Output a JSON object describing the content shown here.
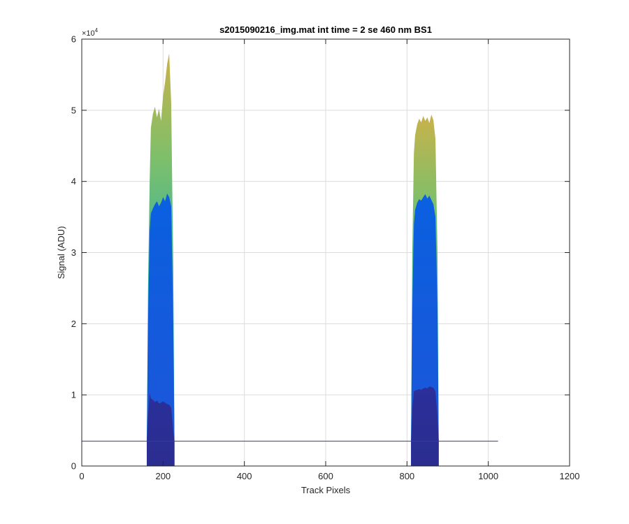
{
  "chart_data": {
    "type": "area",
    "title": "s2015090216_img.mat int time = 2 se  460 nm BS1",
    "xlabel": "Track Pixels",
    "ylabel": "Signal (ADU)",
    "xlim": [
      0,
      1200
    ],
    "ylim": [
      0,
      60000
    ],
    "y_exponent_label": "×10",
    "y_exponent_power": "4",
    "x_ticks": [
      "0",
      "200",
      "400",
      "600",
      "800",
      "1000",
      "1200"
    ],
    "y_ticks": [
      "0",
      "1",
      "2",
      "3",
      "4",
      "5",
      "6"
    ],
    "grid": true,
    "baseline": 3500,
    "colors": {
      "dark": "#2b2d8f",
      "mid": "#0a60e0",
      "teal": "#22b3b0",
      "green": "#7fbf6a",
      "yellow": "#c9b24a",
      "baseline": "#3b3b9a"
    },
    "series": [
      {
        "tier": "low",
        "x": [
          160,
          163,
          167,
          170,
          175,
          180,
          185,
          190,
          195,
          200,
          205,
          210,
          215,
          220,
          225,
          228
        ],
        "values": [
          3500,
          7000,
          10200,
          9500,
          9300,
          9000,
          9200,
          8800,
          8900,
          9100,
          8900,
          8700,
          8600,
          8200,
          5000,
          3500
        ]
      },
      {
        "tier": "mid",
        "x": [
          160,
          163,
          167,
          170,
          175,
          180,
          185,
          190,
          195,
          200,
          205,
          210,
          215,
          220,
          225,
          228
        ],
        "values": [
          3500,
          20000,
          33000,
          35500,
          36200,
          36800,
          37200,
          36500,
          37000,
          37800,
          37200,
          38300,
          37800,
          36500,
          20000,
          3500
        ]
      },
      {
        "tier": "high",
        "x": [
          160,
          163,
          167,
          170,
          175,
          180,
          185,
          190,
          195,
          200,
          205,
          210,
          215,
          220,
          225,
          228
        ],
        "values": [
          3500,
          25000,
          40000,
          47500,
          49500,
          50500,
          49000,
          50200,
          48500,
          52000,
          54000,
          56500,
          58000,
          51000,
          28000,
          3500
        ]
      },
      {
        "tier": "low",
        "x": [
          810,
          813,
          817,
          820,
          825,
          830,
          835,
          840,
          845,
          850,
          855,
          860,
          865,
          870,
          875,
          878
        ],
        "values": [
          3500,
          8000,
          10500,
          10600,
          10700,
          10800,
          10700,
          10900,
          11000,
          10900,
          11200,
          11100,
          11000,
          10500,
          7000,
          3500
        ]
      },
      {
        "tier": "mid",
        "x": [
          810,
          813,
          817,
          820,
          825,
          830,
          835,
          840,
          845,
          850,
          855,
          860,
          865,
          870,
          875,
          878
        ],
        "values": [
          3500,
          22000,
          34000,
          36000,
          37000,
          37500,
          37300,
          37800,
          38200,
          37600,
          38000,
          37400,
          36800,
          35000,
          22000,
          3500
        ]
      },
      {
        "tier": "high",
        "x": [
          810,
          813,
          817,
          820,
          825,
          830,
          835,
          840,
          845,
          850,
          855,
          860,
          865,
          870,
          875,
          878
        ],
        "values": [
          3500,
          30000,
          44000,
          46500,
          48000,
          48800,
          48300,
          49200,
          48500,
          49000,
          48200,
          49400,
          48600,
          46000,
          30000,
          3500
        ]
      }
    ]
  }
}
